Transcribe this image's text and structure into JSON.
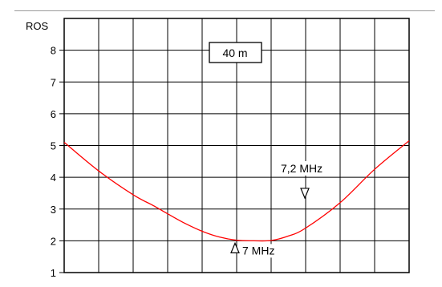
{
  "chart_data": {
    "type": "line",
    "title": "40 m",
    "ylabel": "ROS",
    "xlabel": "",
    "ylim": [
      1,
      9
    ],
    "xlim": [
      6.9,
      7.4
    ],
    "y_ticks": [
      1,
      2,
      3,
      4,
      5,
      6,
      7,
      8
    ],
    "grid": true,
    "series": [
      {
        "color": "#ff0000",
        "x": [
          6.9,
          6.95,
          7.0,
          7.03,
          7.05,
          7.075,
          7.1,
          7.125,
          7.15,
          7.175,
          7.2,
          7.225,
          7.25,
          7.3,
          7.35,
          7.4
        ],
        "y": [
          5.1,
          4.2,
          3.45,
          3.1,
          2.85,
          2.55,
          2.3,
          2.12,
          2.02,
          2.0,
          2.01,
          2.15,
          2.4,
          3.2,
          4.25,
          5.15
        ]
      }
    ],
    "markers": [
      {
        "label": "7 MHz",
        "y": 2.0,
        "direction": "up"
      },
      {
        "label": "7,2 MHz",
        "y": 3.5,
        "direction": "down"
      }
    ]
  }
}
